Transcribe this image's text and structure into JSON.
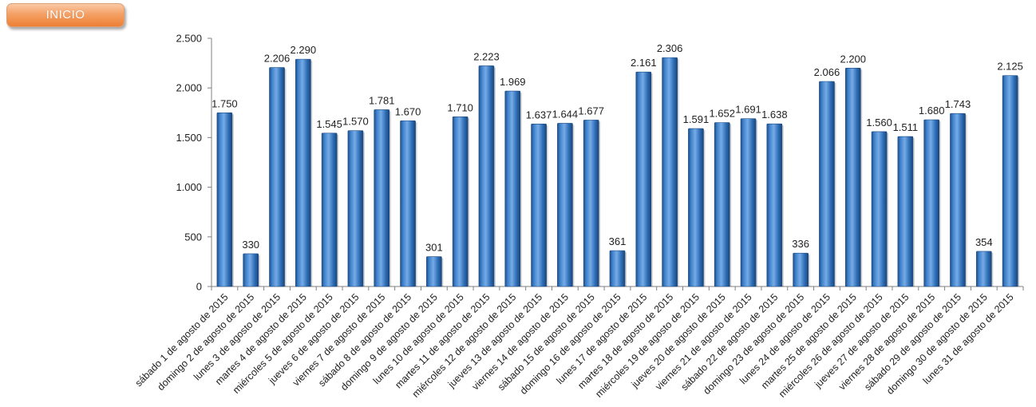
{
  "header": {
    "inicio_label": "INICIO"
  },
  "colors": {
    "bar": "#2f73c0",
    "bar_light": "#6aa2e0",
    "bar_dark": "#1f4f8a",
    "axis": "#808080",
    "button_accent": "#ee7f34"
  },
  "chart_data": {
    "type": "bar",
    "title": "",
    "xlabel": "",
    "ylabel": "",
    "ylim": [
      0,
      2500
    ],
    "yticks": [
      0,
      500,
      1000,
      1500,
      2000,
      2500
    ],
    "ytick_labels": [
      "0",
      "500",
      "1.000",
      "1.500",
      "2.000",
      "2.500"
    ],
    "grid": false,
    "legend": "none",
    "categories": [
      "sábado 1 de agosto de 2015",
      "domingo 2 de agosto de 2015",
      "lunes 3 de agosto de 2015",
      "martes 4 de agosto de 2015",
      "miércoles 5 de agosto de 2015",
      "jueves 6 de agosto de 2015",
      "viernes 7 de agosto de 2015",
      "sábado 8 de agosto de 2015",
      "domingo 9 de agosto de 2015",
      "lunes 10 de agosto de 2015",
      "martes 11 de agosto de 2015",
      "miércoles 12 de agosto de 2015",
      "jueves 13 de agosto de 2015",
      "viernes 14 de agosto de 2015",
      "sábado 15 de agosto de 2015",
      "domingo 16 de agosto de 2015",
      "lunes 17 de agosto de 2015",
      "martes 18 de agosto de 2015",
      "miércoles 19 de agosto de 2015",
      "jueves 20 de agosto de 2015",
      "viernes 21 de agosto de 2015",
      "sábado 22 de agosto de 2015",
      "domingo 23 de agosto de 2015",
      "lunes 24 de agosto de 2015",
      "martes 25 de agosto de 2015",
      "miércoles 26 de agosto de 2015",
      "jueves 27 de agosto de 2015",
      "viernes 28 de agosto de 2015",
      "sábado 29 de agosto de 2015",
      "domingo 30 de agosto de 2015",
      "lunes 31 de agosto de 2015"
    ],
    "values": [
      1750,
      330,
      2206,
      2290,
      1545,
      1570,
      1781,
      1670,
      301,
      1710,
      2223,
      1969,
      1637,
      1644,
      1677,
      361,
      2161,
      2306,
      1591,
      1652,
      1691,
      1638,
      336,
      2066,
      2200,
      1560,
      1511,
      1680,
      1743,
      354,
      2125
    ],
    "value_labels": [
      "1.750",
      "330",
      "2.206",
      "2.290",
      "1.545",
      "1.570",
      "1.781",
      "1.670",
      "301",
      "1.710",
      "2.223",
      "1.969",
      "1.637",
      "1.644",
      "1.677",
      "361",
      "2.161",
      "2.306",
      "1.591",
      "1.652",
      "1.691",
      "1.638",
      "336",
      "2.066",
      "2.200",
      "1.560",
      "1.511",
      "1.680",
      "1.743",
      "354",
      "2.125"
    ]
  }
}
